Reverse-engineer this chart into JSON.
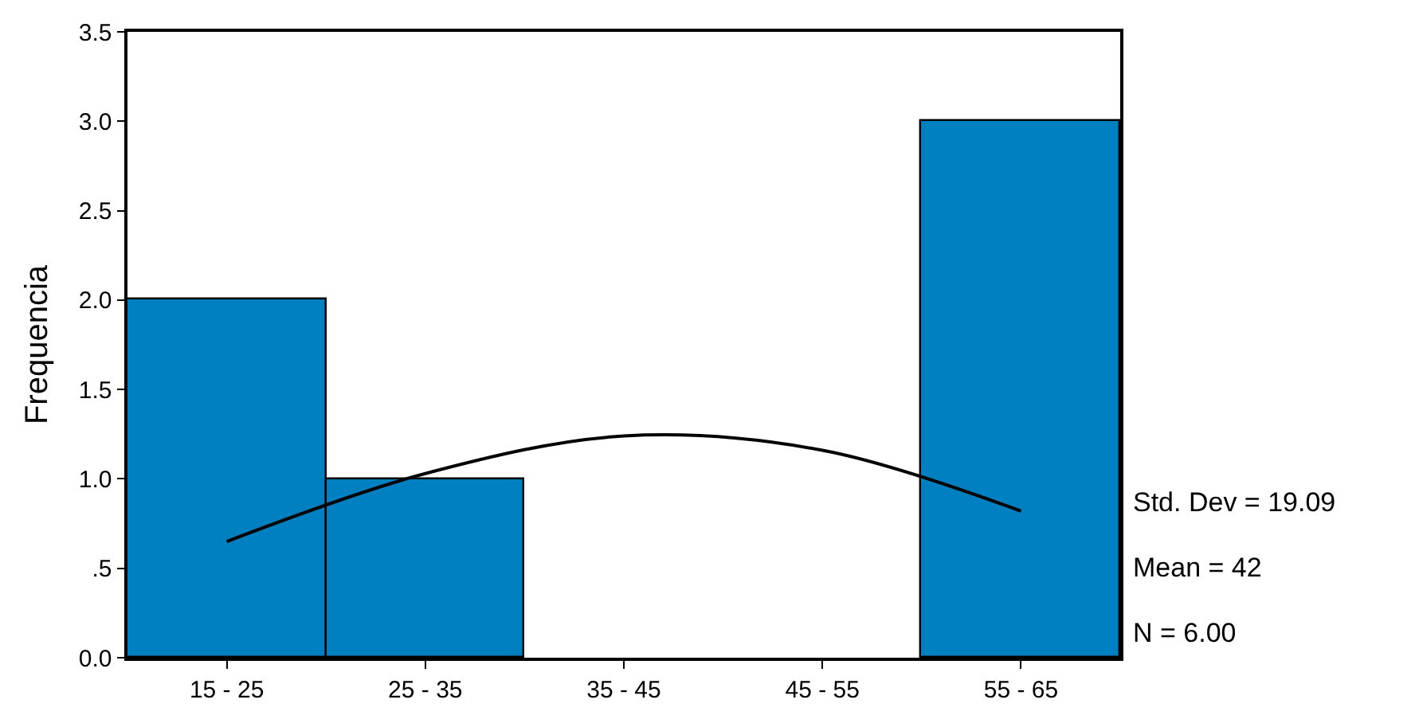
{
  "chart_data": {
    "type": "bar",
    "ylabel": "Frequencia",
    "categories": [
      "15 - 25",
      "25 - 35",
      "35 - 45",
      "45 - 55",
      "55 - 65"
    ],
    "series": [
      {
        "color": "#0080c0",
        "values": [
          2,
          1,
          0,
          0,
          3
        ]
      },
      {
        "type": "line",
        "color": "#000000",
        "values": [
          0.65,
          1.03,
          1.24,
          1.16,
          0.82
        ]
      }
    ],
    "ylim": [
      0,
      3.5
    ],
    "yticks": [
      {
        "value": 0,
        "label": "0.0"
      },
      {
        "value": 0.5,
        "label": ".5"
      },
      {
        "value": 1,
        "label": "1.0"
      },
      {
        "value": 1.5,
        "label": "1.5"
      },
      {
        "value": 2,
        "label": "2.0"
      },
      {
        "value": 2.5,
        "label": "2.5"
      },
      {
        "value": 3,
        "label": "3.0"
      },
      {
        "value": 3.5,
        "label": "3.5"
      }
    ],
    "annotations": [
      "Std. Dev = 19.09",
      "Mean = 42",
      "N = 6.00"
    ],
    "marker": "none",
    "line_style": "solid"
  }
}
